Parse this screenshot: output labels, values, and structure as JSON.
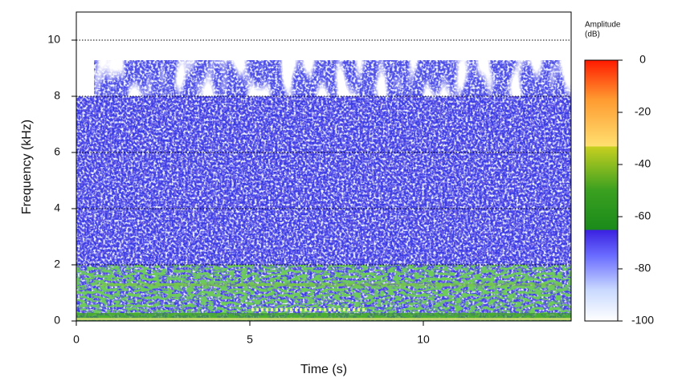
{
  "chart_data": {
    "type": "spectrogram",
    "x_label": "Time (s)",
    "y_label": "Frequency (kHz)",
    "xlim": [
      0,
      14.26
    ],
    "xticks": [
      0,
      5,
      10
    ],
    "ylim": [
      0,
      11
    ],
    "yticks": [
      0,
      2,
      4,
      6,
      8,
      10
    ],
    "grid": true,
    "colorbar": {
      "label": [
        "Amplitude",
        "(dB)"
      ],
      "lim": [
        -100,
        0
      ],
      "ticks": [
        0,
        -20,
        -40,
        -60,
        -80,
        -100
      ]
    }
  }
}
